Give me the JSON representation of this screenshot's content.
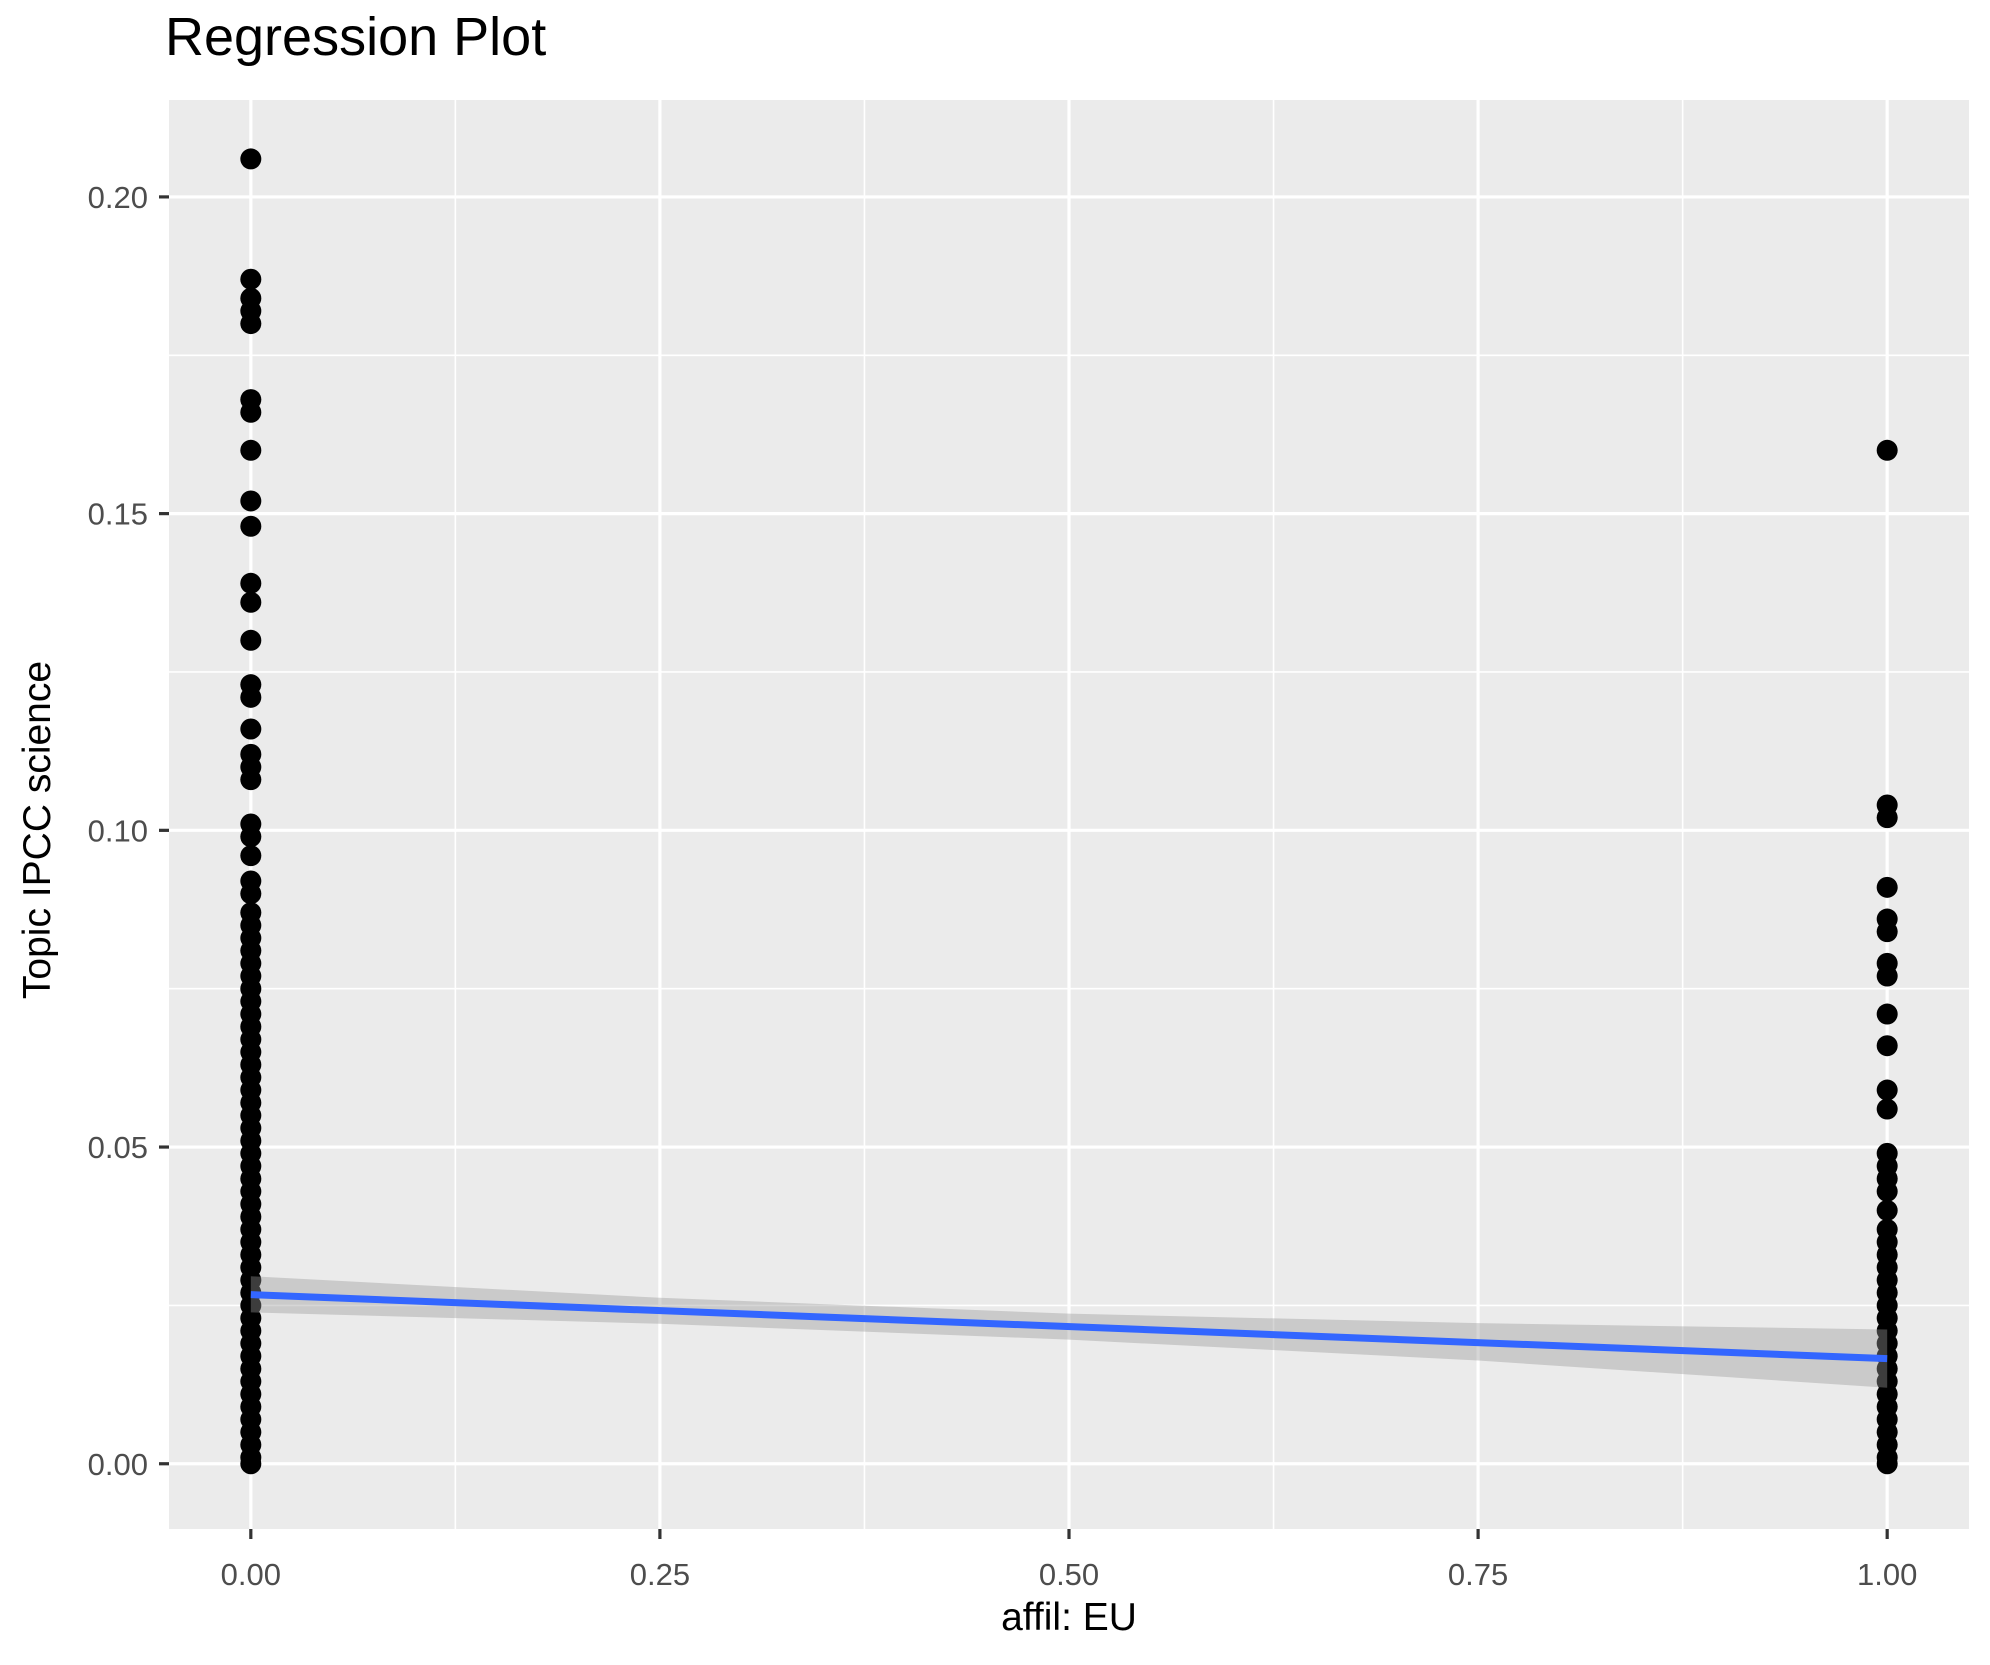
{
  "chart_data": {
    "type": "scatter",
    "title": "Regression Plot",
    "xlabel": "affil: EU",
    "ylabel": "Topic IPCC science",
    "xlim": [
      -0.05,
      1.05
    ],
    "ylim": [
      -0.0103,
      0.2153
    ],
    "grid": "white major and minor gridlines on gray panel",
    "legend_position": "none",
    "x_ticks": {
      "values": [
        0,
        0.25,
        0.5,
        0.75,
        1
      ],
      "labels": [
        "0.00",
        "0.25",
        "0.50",
        "0.75",
        "1.00"
      ]
    },
    "y_ticks": {
      "values": [
        0,
        0.05,
        0.1,
        0.15,
        0.2
      ],
      "labels": [
        "0.00",
        "0.05",
        "0.10",
        "0.15",
        "0.20"
      ]
    },
    "x_minor": [
      0.125,
      0.375,
      0.625,
      0.875
    ],
    "y_minor": [
      0.025,
      0.075,
      0.125,
      0.175
    ],
    "series": [
      {
        "name": "observations at affil EU = 0",
        "x": 0,
        "y": [
          0.206,
          0.187,
          0.184,
          0.182,
          0.18,
          0.168,
          0.166,
          0.16,
          0.152,
          0.148,
          0.139,
          0.136,
          0.13,
          0.123,
          0.121,
          0.116,
          0.112,
          0.11,
          0.108,
          0.101,
          0.099,
          0.096,
          0.092,
          0.09,
          0.087,
          0.085,
          0.083,
          0.081,
          0.079,
          0.077,
          0.075,
          0.073,
          0.071,
          0.069,
          0.067,
          0.065,
          0.063,
          0.061,
          0.059,
          0.057,
          0.055,
          0.053,
          0.051,
          0.049,
          0.047,
          0.045,
          0.043,
          0.041,
          0.039,
          0.037,
          0.035,
          0.033,
          0.031,
          0.029,
          0.027,
          0.025,
          0.023,
          0.021,
          0.019,
          0.017,
          0.015,
          0.013,
          0.011,
          0.009,
          0.007,
          0.005,
          0.003,
          0.001,
          0
        ]
      },
      {
        "name": "observations at affil EU = 1",
        "x": 1,
        "y": [
          0.16,
          0.104,
          0.102,
          0.091,
          0.086,
          0.084,
          0.079,
          0.077,
          0.071,
          0.066,
          0.059,
          0.056,
          0.049,
          0.047,
          0.045,
          0.043,
          0.04,
          0.037,
          0.035,
          0.033,
          0.031,
          0.029,
          0.027,
          0.025,
          0.023,
          0.021,
          0.019,
          0.017,
          0.015,
          0.013,
          0.011,
          0.009,
          0.007,
          0.005,
          0.003,
          0.001,
          0
        ]
      }
    ],
    "regression_line": {
      "x": [
        0,
        1
      ],
      "y": [
        0.0267,
        0.0166
      ]
    },
    "ci_band": {
      "x": [
        0,
        0.25,
        0.5,
        0.75,
        1
      ],
      "upper": [
        0.0296,
        0.0262,
        0.0237,
        0.0222,
        0.0212
      ],
      "lower": [
        0.0239,
        0.0221,
        0.0196,
        0.0163,
        0.012
      ]
    },
    "colors": {
      "panel_bg": "#EBEBEB",
      "grid": "#FFFFFF",
      "point": "#000000",
      "line": "#3366FF",
      "band": "#999999",
      "band_opacity": 0.4,
      "tick_label": "#4D4D4D",
      "tick_mark": "#333333",
      "text": "#000000",
      "outer_bg": "#FFFFFF"
    }
  }
}
